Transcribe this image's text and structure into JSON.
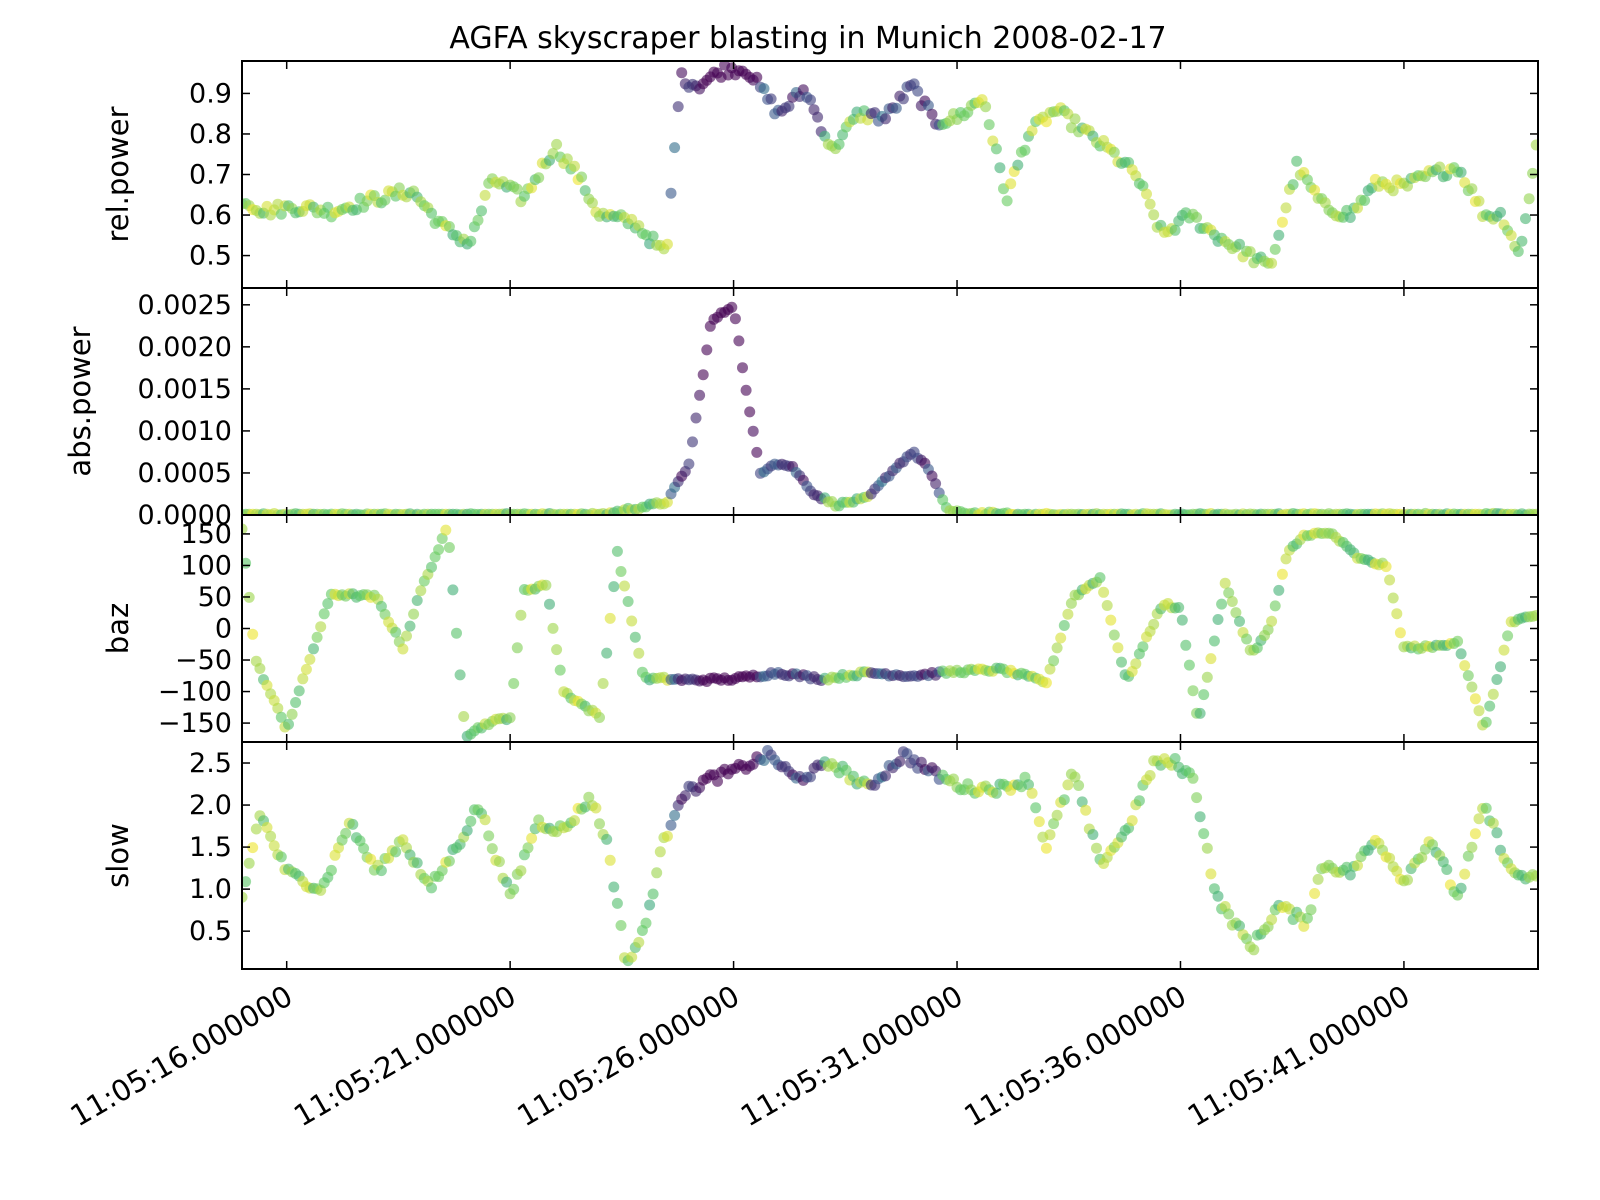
{
  "chart_data": {
    "type": "scatter",
    "title": "AGFA skyscraper blasting in Munich 2008-02-17",
    "x_axis": {
      "type": "time",
      "range": [
        "11:05:15.000000",
        "11:05:44.000000"
      ],
      "tick_labels": [
        "11:05:16.000000",
        "11:05:21.000000",
        "11:05:26.000000",
        "11:05:31.000000",
        "11:05:36.000000",
        "11:05:41.000000"
      ],
      "tick_seconds": [
        16,
        21,
        26,
        31,
        36,
        41
      ],
      "label_rotation": "30 degrees"
    },
    "colormap": {
      "name": "viridis",
      "mapped_to": "abs.power",
      "stops": [
        "#440154",
        "#3b528b",
        "#21918c",
        "#5ec962",
        "#fde725"
      ]
    },
    "marker": {
      "shape": "circle",
      "alpha": 0.6
    },
    "grid": false,
    "legend": "none",
    "shared_x": true,
    "panels": [
      {
        "ylabel": "rel.power",
        "ylim": [
          0.42,
          0.98
        ],
        "yticks": [
          0.5,
          0.6,
          0.7,
          0.8,
          0.9
        ],
        "ytick_labels": [
          "0.5",
          "0.6",
          "0.7",
          "0.8",
          "0.9"
        ],
        "keyframes_t": [
          15.0,
          15.5,
          16.2,
          17.0,
          18.0,
          18.8,
          19.5,
          20.1,
          20.6,
          21.3,
          22.0,
          22.5,
          23.0,
          23.8,
          24.5,
          24.8,
          25.2,
          25.8,
          26.3,
          27.0,
          27.6,
          28.2,
          28.8,
          29.4,
          30.0,
          30.5,
          31.0,
          31.6,
          32.1,
          32.6,
          33.2,
          33.8,
          34.4,
          35.0,
          35.6,
          36.2,
          36.8,
          37.4,
          38.0,
          38.6,
          39.2,
          39.8,
          40.4,
          41.0,
          41.6,
          42.2,
          42.8,
          43.2,
          43.6,
          44.0
        ],
        "keyframes_v": [
          0.64,
          0.61,
          0.62,
          0.61,
          0.64,
          0.66,
          0.57,
          0.53,
          0.69,
          0.64,
          0.77,
          0.7,
          0.6,
          0.58,
          0.5,
          0.94,
          0.92,
          0.96,
          0.96,
          0.85,
          0.91,
          0.76,
          0.85,
          0.84,
          0.92,
          0.83,
          0.84,
          0.89,
          0.64,
          0.8,
          0.86,
          0.81,
          0.76,
          0.7,
          0.55,
          0.6,
          0.55,
          0.51,
          0.47,
          0.72,
          0.62,
          0.6,
          0.68,
          0.67,
          0.7,
          0.72,
          0.6,
          0.6,
          0.5,
          0.8
        ],
        "noise": 0.015
      },
      {
        "ylabel": "abs.power",
        "ylim": [
          0.0,
          0.0027
        ],
        "yticks": [
          0.0,
          0.0005,
          0.001,
          0.0015,
          0.002,
          0.0025
        ],
        "ytick_labels": [
          "0.0000",
          "0.0005",
          "0.0010",
          "0.0015",
          "0.0020",
          "0.0025"
        ],
        "keyframes_t": [
          15.0,
          23.0,
          24.5,
          25.0,
          25.5,
          26.0,
          26.3,
          26.6,
          26.9,
          27.3,
          27.8,
          28.3,
          29.0,
          29.6,
          30.0,
          30.3,
          30.8,
          31.0,
          31.5,
          32.5,
          44.0
        ],
        "keyframes_v": [
          0.0,
          0.0,
          0.00015,
          0.0006,
          0.0023,
          0.0025,
          0.0014,
          0.0005,
          0.00062,
          0.00058,
          0.00025,
          0.00012,
          0.0002,
          0.00055,
          0.00075,
          0.0006,
          5e-05,
          3e-05,
          2e-05,
          0.0,
          0.0
        ],
        "noise": 2e-05
      },
      {
        "ylabel": "baz",
        "ylim": [
          -180,
          180
        ],
        "yticks": [
          -150,
          -100,
          -50,
          0,
          50,
          100,
          150
        ],
        "ytick_labels": [
          "−150",
          "−100",
          "−50",
          "0",
          "50",
          "100",
          "150"
        ],
        "keyframes_t": [
          15.0,
          15.3,
          16.0,
          17.0,
          18.0,
          18.6,
          19.0,
          19.6,
          20.0,
          20.5,
          21.0,
          21.3,
          21.8,
          22.2,
          22.6,
          23.0,
          23.4,
          24.0,
          24.5,
          25.0,
          26.0,
          27.0,
          28.0,
          29.0,
          30.0,
          31.0,
          32.0,
          33.0,
          33.6,
          34.2,
          34.8,
          35.6,
          36.0,
          36.4,
          37.0,
          37.6,
          38.0,
          38.4,
          38.8,
          39.4,
          40.0,
          40.6,
          41.0,
          41.6,
          42.2,
          42.8,
          43.4,
          44.0
        ],
        "keyframes_v": [
          160,
          -50,
          -160,
          55,
          50,
          -30,
          60,
          160,
          -170,
          -150,
          -140,
          60,
          70,
          -100,
          -120,
          -140,
          120,
          -80,
          -80,
          -82,
          -80,
          -70,
          -80,
          -70,
          -75,
          -68,
          -65,
          -85,
          50,
          80,
          -85,
          40,
          30,
          -150,
          70,
          -40,
          0,
          120,
          150,
          150,
          110,
          100,
          -30,
          -30,
          -20,
          -160,
          10,
          20
        ],
        "noise": 3
      },
      {
        "ylabel": "slow",
        "ylim": [
          0.05,
          2.75
        ],
        "yticks": [
          0.5,
          1.0,
          1.5,
          2.0,
          2.5
        ],
        "ytick_labels": [
          "0.5",
          "1.0",
          "1.5",
          "2.0",
          "2.5"
        ],
        "keyframes_t": [
          15.0,
          15.4,
          16.0,
          16.8,
          17.4,
          18.0,
          18.6,
          19.2,
          19.8,
          20.3,
          21.0,
          21.6,
          22.2,
          22.8,
          23.2,
          23.6,
          24.0,
          24.4,
          24.8,
          25.4,
          26.0,
          26.8,
          27.4,
          28.2,
          29.0,
          29.8,
          30.4,
          31.2,
          32.0,
          32.6,
          33.0,
          33.6,
          34.2,
          34.8,
          35.4,
          35.9,
          36.3,
          36.8,
          37.2,
          37.6,
          38.2,
          38.8,
          39.2,
          39.8,
          40.4,
          41.0,
          41.6,
          42.2,
          42.8,
          43.4,
          44.0
        ],
        "keyframes_v": [
          0.9,
          1.9,
          1.2,
          1.0,
          1.8,
          1.2,
          1.6,
          1.0,
          1.5,
          2.0,
          0.9,
          1.8,
          1.7,
          2.1,
          1.5,
          0.1,
          0.5,
          1.5,
          2.1,
          2.3,
          2.4,
          2.6,
          2.3,
          2.5,
          2.2,
          2.6,
          2.4,
          2.2,
          2.2,
          2.3,
          1.5,
          2.4,
          1.3,
          1.7,
          2.5,
          2.5,
          2.3,
          0.9,
          0.6,
          0.3,
          0.8,
          0.6,
          1.3,
          1.2,
          1.6,
          1.1,
          1.6,
          0.9,
          2.0,
          1.2,
          1.1
        ],
        "noise": 0.06
      }
    ]
  }
}
